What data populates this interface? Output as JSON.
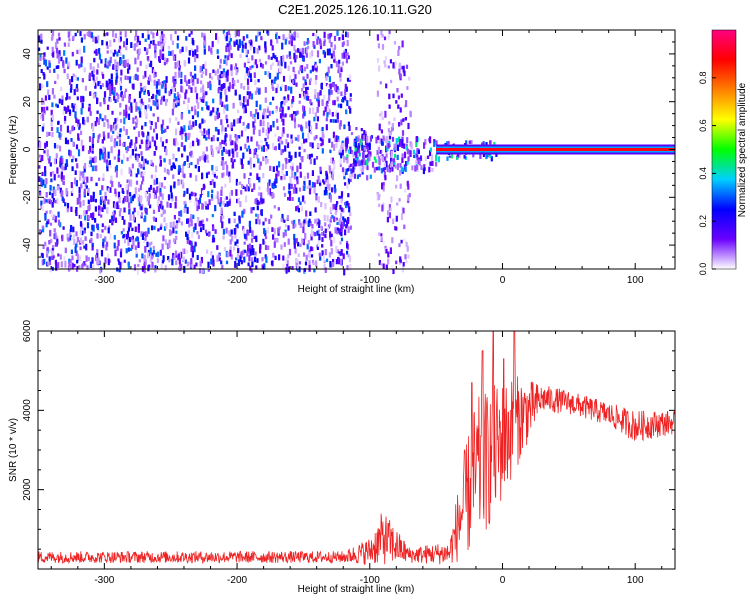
{
  "chart_data": [
    {
      "type": "heatmap",
      "title": "C2E1.2025.126.10.11.G20",
      "xlabel": "Height of straight line (km)",
      "ylabel": "Frequency (Hz)",
      "xlim": [
        -350,
        130
      ],
      "ylim": [
        -50,
        50
      ],
      "xticks": [
        -300,
        -200,
        -100,
        0,
        100
      ],
      "yticks": [
        -40,
        -20,
        0,
        20,
        40
      ],
      "colorbar": {
        "label": "Normalized spectral amplitude",
        "range": [
          0,
          1
        ],
        "ticks": [
          0.0,
          0.2,
          0.4,
          0.6,
          0.8
        ],
        "colors": [
          "#ffffff",
          "#6a00ff",
          "#0000ff",
          "#00d0ff",
          "#00ff00",
          "#ffff00",
          "#ff8000",
          "#ff0000",
          "#ff0080"
        ]
      },
      "zones": [
        {
          "x": [
            -350,
            -115
          ],
          "freq_spread": [
            -50,
            50
          ],
          "density": 0.55,
          "amp": 0.22
        },
        {
          "x": [
            -115,
            -100
          ],
          "freq_spread": [
            -12,
            10
          ],
          "density": 0.45,
          "amp": 0.25
        },
        {
          "x": [
            -95,
            -70
          ],
          "freq_spread": [
            -50,
            50
          ],
          "density": 0.3,
          "amp": 0.12
        },
        {
          "x": [
            -120,
            -50
          ],
          "freq_spread": [
            -8,
            6
          ],
          "density": 0.9,
          "amp": 0.3
        },
        {
          "x": [
            -50,
            -5
          ],
          "freq_spread": [
            -3,
            4
          ],
          "density": 0.9,
          "amp": 0.3
        },
        {
          "x": [
            -50,
            130
          ],
          "freq_spread": [
            0,
            0
          ],
          "density": 1,
          "amp": 0.9
        }
      ]
    },
    {
      "type": "line",
      "xlabel": "Height of straight line (km)",
      "ylabel": "SNR (10 * v/v)",
      "xlim": [
        -350,
        130
      ],
      "ylim": [
        0,
        6000
      ],
      "xticks": [
        -300,
        -200,
        -100,
        0,
        100
      ],
      "yticks": [
        2000,
        4000,
        6000
      ],
      "color": "#ee2222",
      "envelope": [
        {
          "x": -350,
          "mean": 300,
          "amp": 150
        },
        {
          "x": -120,
          "mean": 300,
          "amp": 150
        },
        {
          "x": -100,
          "mean": 450,
          "amp": 350
        },
        {
          "x": -90,
          "mean": 800,
          "amp": 700
        },
        {
          "x": -70,
          "mean": 350,
          "amp": 200
        },
        {
          "x": -40,
          "mean": 400,
          "amp": 300
        },
        {
          "x": -30,
          "mean": 1500,
          "amp": 1300
        },
        {
          "x": -20,
          "mean": 2400,
          "amp": 1900
        },
        {
          "x": -5,
          "mean": 3000,
          "amp": 1700
        },
        {
          "x": 10,
          "mean": 3700,
          "amp": 1200
        },
        {
          "x": 30,
          "mean": 4300,
          "amp": 350
        },
        {
          "x": 50,
          "mean": 4200,
          "amp": 300
        },
        {
          "x": 80,
          "mean": 3900,
          "amp": 300
        },
        {
          "x": 100,
          "mean": 3600,
          "amp": 400
        },
        {
          "x": 130,
          "mean": 3700,
          "amp": 300
        }
      ],
      "spikes": [
        {
          "x": -23,
          "y": 4700
        },
        {
          "x": -15,
          "y": 5500
        },
        {
          "x": -7,
          "y": 6000
        },
        {
          "x": 9,
          "y": 6000
        },
        {
          "x": 1,
          "y": 5300
        }
      ]
    }
  ]
}
